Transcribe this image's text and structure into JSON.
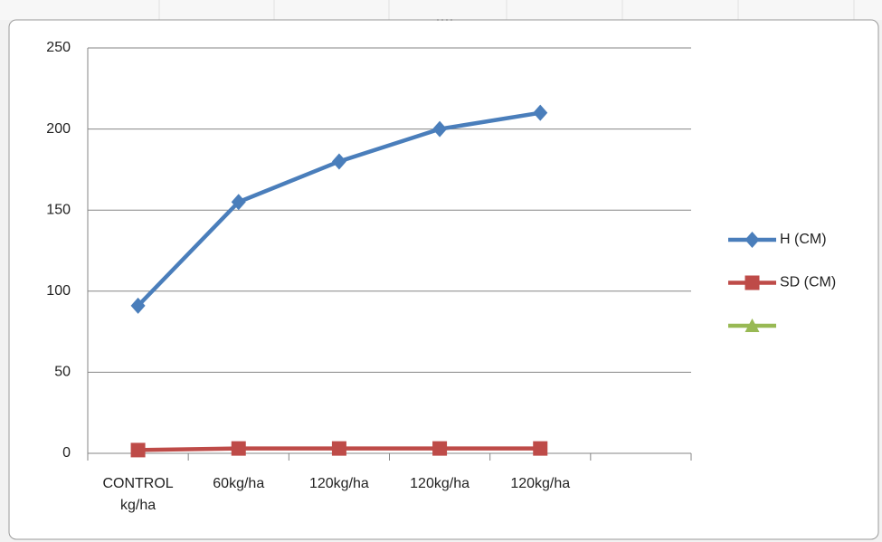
{
  "chart_data": {
    "type": "line",
    "categories": [
      "CONTROL kg/ha",
      "60kg/ha",
      "120kg/ha",
      "120kg/ha",
      "120kg/ha",
      null
    ],
    "series": [
      {
        "name": "H (CM)",
        "color": "#4a7ebb",
        "marker": "diamond",
        "values": [
          91,
          155,
          180,
          200,
          210,
          null
        ]
      },
      {
        "name": "SD (CM)",
        "color": "#be4b48",
        "marker": "square",
        "values": [
          2,
          3,
          3,
          3,
          3,
          null
        ]
      },
      {
        "color": "#98b954",
        "marker": "triangle",
        "values": [
          null,
          null,
          null,
          null,
          null,
          null
        ]
      }
    ],
    "ylim": [
      0,
      250
    ],
    "yticks": [
      0,
      50,
      100,
      150,
      200,
      250
    ],
    "grid": true,
    "legend": "right"
  }
}
